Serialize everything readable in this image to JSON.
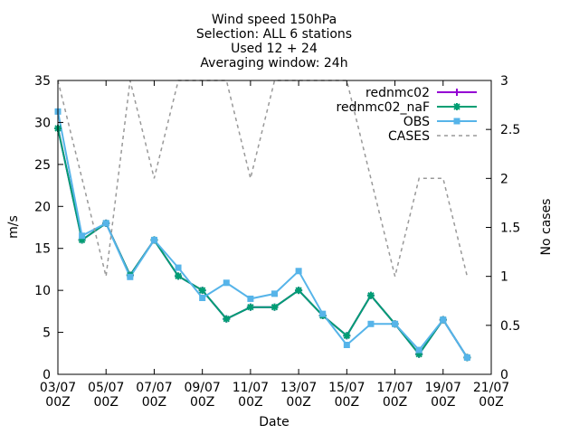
{
  "chart_data": {
    "type": "line",
    "title_lines": [
      "Wind speed 150hPa",
      "Selection: ALL      6 stations",
      "Used 12 + 24",
      "Averaging window: 24h"
    ],
    "xlabel": "Date",
    "ylabel": "m/s",
    "y2label": "No cases",
    "x_ticks": [
      {
        "day": 3,
        "line1": "03/07",
        "line2": "00Z"
      },
      {
        "day": 5,
        "line1": "05/07",
        "line2": "00Z"
      },
      {
        "day": 7,
        "line1": "07/07",
        "line2": "00Z"
      },
      {
        "day": 9,
        "line1": "09/07",
        "line2": "00Z"
      },
      {
        "day": 11,
        "line1": "11/07",
        "line2": "00Z"
      },
      {
        "day": 13,
        "line1": "13/07",
        "line2": "00Z"
      },
      {
        "day": 15,
        "line1": "15/07",
        "line2": "00Z"
      },
      {
        "day": 17,
        "line1": "17/07",
        "line2": "00Z"
      },
      {
        "day": 19,
        "line1": "19/07",
        "line2": "00Z"
      },
      {
        "day": 21,
        "line1": "21/07",
        "line2": "00Z"
      }
    ],
    "xlim": [
      3,
      21
    ],
    "ylim": [
      0,
      35
    ],
    "y_ticks": [
      0,
      5,
      10,
      15,
      20,
      25,
      30,
      35
    ],
    "y2lim": [
      0,
      3
    ],
    "y2_ticks": [
      0,
      0.5,
      1,
      1.5,
      2,
      2.5,
      3
    ],
    "grid": false,
    "legend_position": "top-right",
    "x": [
      3,
      4,
      5,
      6,
      7,
      8,
      9,
      10,
      11,
      12,
      13,
      14,
      15,
      16,
      17,
      18,
      19,
      20
    ],
    "series": [
      {
        "name": "rednmc02",
        "color": "#9400d3",
        "marker": "plus",
        "axis": "y",
        "values": [
          29.3,
          16.0,
          18.0,
          11.8,
          16.0,
          11.7,
          10.0,
          6.6,
          8.0,
          8.0,
          10.0,
          7.0,
          4.6,
          9.4,
          6.0,
          2.4,
          6.5,
          2.0
        ]
      },
      {
        "name": "rednmc02_naF",
        "color": "#009e73",
        "marker": "star",
        "axis": "y",
        "values": [
          29.3,
          16.0,
          18.0,
          11.8,
          16.0,
          11.7,
          10.0,
          6.6,
          8.0,
          8.0,
          10.0,
          7.0,
          4.6,
          9.4,
          6.0,
          2.4,
          6.5,
          2.0
        ]
      },
      {
        "name": "OBS",
        "color": "#56b4e9",
        "marker": "box",
        "axis": "y",
        "values": [
          31.3,
          16.5,
          18.0,
          11.6,
          16.0,
          12.7,
          9.1,
          10.9,
          9.0,
          9.6,
          12.3,
          7.2,
          3.5,
          6.0,
          6.0,
          2.9,
          6.5,
          2.0
        ]
      },
      {
        "name": "CASES",
        "color": "#999999",
        "marker": "none",
        "dashed": true,
        "axis": "y2",
        "values": [
          3,
          2,
          1,
          3,
          2,
          3,
          3,
          3,
          2,
          3,
          3,
          3,
          3,
          2,
          1,
          2,
          2,
          1
        ]
      }
    ]
  }
}
